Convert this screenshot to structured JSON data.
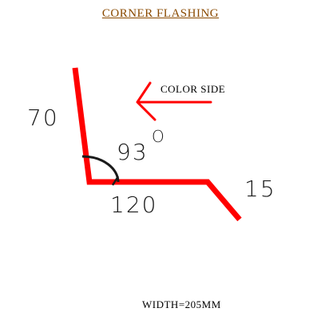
{
  "title": "CORNER FLASHING",
  "color_side": {
    "label": "COLOR SIDE",
    "arrow_color": "#ff0000",
    "icon": "left-arrow-icon"
  },
  "dimensions": {
    "top_leg": "70",
    "bottom_leg": "120",
    "end_leg": "15",
    "angle": "93",
    "angle_unit": "O"
  },
  "width_note": "WIDTH=205MM",
  "colors": {
    "flashing": "#ff0000",
    "title": "#8a4a00",
    "text": "#1a1a1a"
  }
}
